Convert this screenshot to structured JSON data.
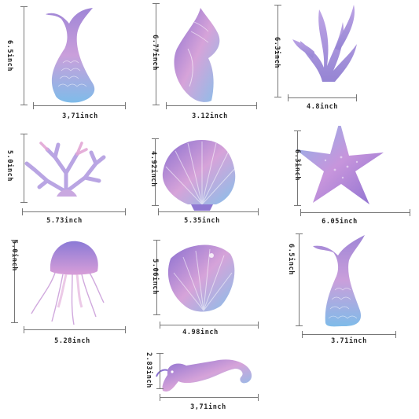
{
  "stickers": [
    {
      "name": "mermaid tail",
      "width": "3,71inch",
      "height": "6.5inch"
    },
    {
      "name": "conch shell",
      "width": "3.12inch",
      "height": "6.77inch"
    },
    {
      "name": "seaweed",
      "width": "4.8inch",
      "height": "6.3inch"
    },
    {
      "name": "coral",
      "width": "5.73inch",
      "height": "5.0inch"
    },
    {
      "name": "scallop shell",
      "width": "5.35inch",
      "height": "4.92inch"
    },
    {
      "name": "starfish",
      "width": "6.05inch",
      "height": "6.3inch"
    },
    {
      "name": "jellyfish",
      "width": "5.28inch",
      "height": "5.0inch"
    },
    {
      "name": "clam shell",
      "width": "4.98inch",
      "height": "5.06inch"
    },
    {
      "name": "mermaid tail 2",
      "width": "3.71inch",
      "height": "6.5inch"
    },
    {
      "name": "seahorse",
      "width": "3,71inch",
      "height": "2.83inch"
    }
  ],
  "colors": {
    "purple": "#9b7fd1",
    "blue": "#7fb3e6",
    "pink": "#d99ad6",
    "line": "#777777"
  }
}
